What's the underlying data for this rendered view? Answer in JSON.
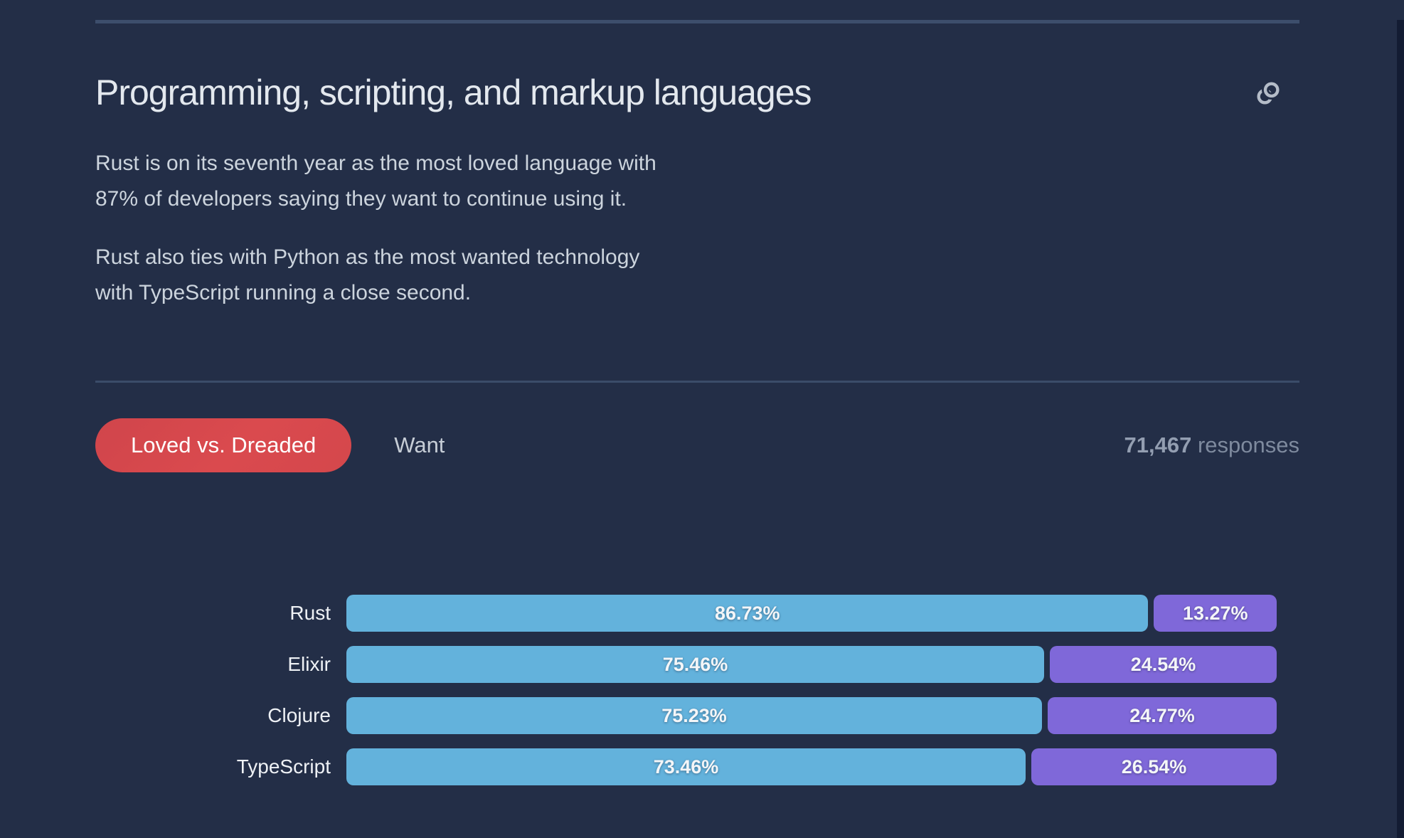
{
  "section": {
    "title": "Programming, scripting, and markup languages",
    "paragraphs": [
      "Rust is on its seventh year as the most loved language with 87% of developers saying they want to continue using it.",
      "Rust also ties with Python as the most wanted technology with TypeScript running a close second."
    ]
  },
  "tabs": {
    "active_label": "Loved vs. Dreaded",
    "inactive_label": "Want"
  },
  "responses": {
    "count": "71,467",
    "label": " responses"
  },
  "icons": {
    "anchor": "link-icon"
  },
  "colors": {
    "background": "#232e47",
    "loved": "#63b2dc",
    "dreaded": "#7f68d9",
    "active_tab": "#d9494e",
    "divider": "#3d4e6c"
  },
  "chart_data": {
    "type": "bar",
    "orientation": "horizontal-stacked",
    "title": "Loved vs. Dreaded",
    "categories": [
      "Rust",
      "Elixir",
      "Clojure",
      "TypeScript"
    ],
    "series": [
      {
        "name": "Loved",
        "color": "#63b2dc",
        "values": [
          86.73,
          75.46,
          75.23,
          73.46
        ]
      },
      {
        "name": "Dreaded",
        "color": "#7f68d9",
        "values": [
          13.27,
          24.54,
          24.77,
          26.54
        ]
      }
    ],
    "value_format": "percent",
    "xlim": [
      0,
      100
    ],
    "grid": false,
    "legend": "none",
    "value_labels": "inside-center"
  }
}
